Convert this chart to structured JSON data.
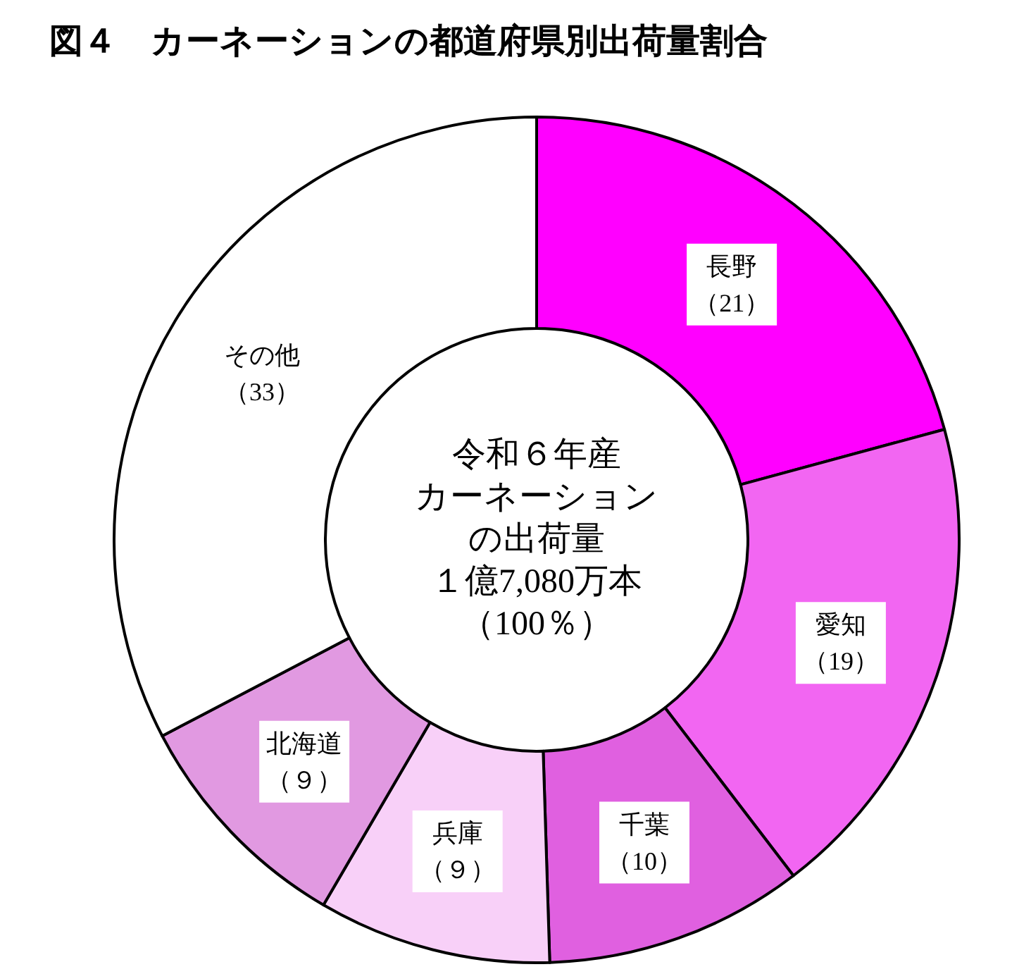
{
  "chart_data": {
    "type": "donut",
    "title": "図４　カーネーションの都道府県別出荷量割合",
    "categories": [
      "長野",
      "愛知",
      "千葉",
      "兵庫",
      "北海道",
      "その他"
    ],
    "values": [
      21,
      19,
      10,
      9,
      9,
      33
    ],
    "value_labels": [
      "（21）",
      "（19）",
      "（10）",
      "（９）",
      "（９）",
      "（33）"
    ],
    "colors": [
      "#ff00ff",
      "#f266f2",
      "#e060e0",
      "#f8d0f8",
      "#e199e1",
      "#ffffff"
    ],
    "annotations": [
      "令和６年産",
      "カーネーション",
      "の出荷量",
      "１億7,080万本",
      "（100％）"
    ]
  }
}
